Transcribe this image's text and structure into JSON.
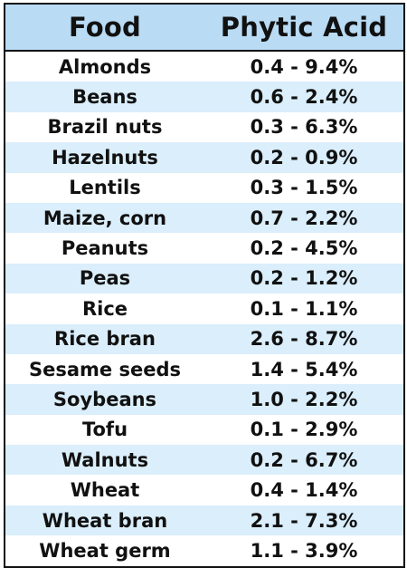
{
  "table": {
    "headers": {
      "food": "Food",
      "phytic_acid": "Phytic Acid"
    },
    "rows": [
      {
        "food": "Almonds",
        "value": "0.4 - 9.4%"
      },
      {
        "food": "Beans",
        "value": "0.6 - 2.4%"
      },
      {
        "food": "Brazil nuts",
        "value": "0.3 - 6.3%"
      },
      {
        "food": "Hazelnuts",
        "value": "0.2 - 0.9%"
      },
      {
        "food": "Lentils",
        "value": "0.3 - 1.5%"
      },
      {
        "food": "Maize, corn",
        "value": "0.7 - 2.2%"
      },
      {
        "food": "Peanuts",
        "value": "0.2 - 4.5%"
      },
      {
        "food": "Peas",
        "value": "0.2 - 1.2%"
      },
      {
        "food": "Rice",
        "value": "0.1 - 1.1%"
      },
      {
        "food": "Rice bran",
        "value": "2.6 - 8.7%"
      },
      {
        "food": "Sesame seeds",
        "value": "1.4 - 5.4%"
      },
      {
        "food": "Soybeans",
        "value": "1.0 - 2.2%"
      },
      {
        "food": "Tofu",
        "value": "0.1 - 2.9%"
      },
      {
        "food": "Walnuts",
        "value": "0.2 - 6.7%"
      },
      {
        "food": "Wheat",
        "value": "0.4 - 1.4%"
      },
      {
        "food": "Wheat bran",
        "value": "2.1 - 7.3%"
      },
      {
        "food": "Wheat germ",
        "value": "1.1 - 3.9%"
      }
    ]
  },
  "colors": {
    "header_bg": "#b9dbf4",
    "row_shade": "#daeefb",
    "row_plain": "#ffffff",
    "border": "#111111",
    "text": "#111111"
  }
}
